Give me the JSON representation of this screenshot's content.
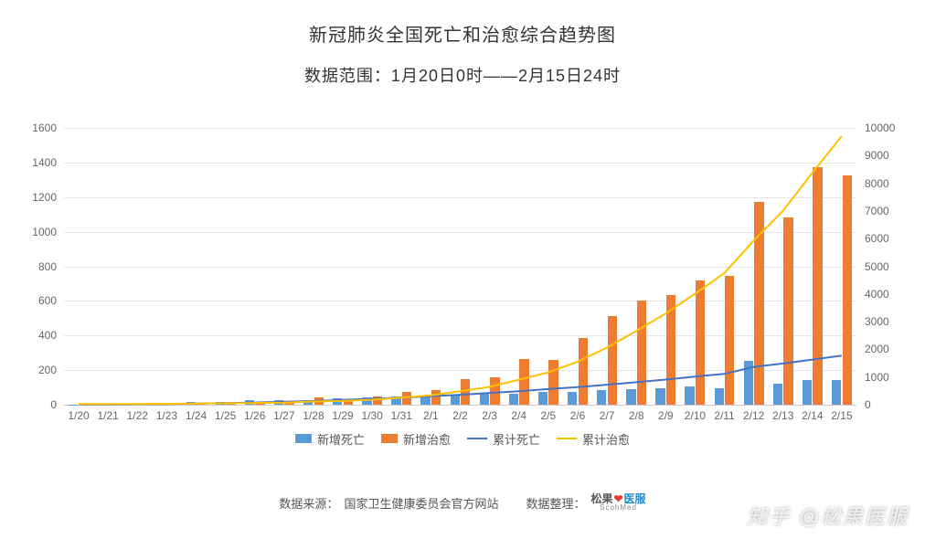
{
  "title": "新冠肺炎全国死亡和治愈综合趋势图",
  "subtitle": "数据范围：1月20日0时——2月15日24时",
  "colors": {
    "bar_deaths": "#5b9bd5",
    "bar_cured": "#ed7d31",
    "line_deaths": "#4472c4",
    "line_cured": "#ffc000",
    "grid": "#e6e6e6",
    "axis_text": "#666666",
    "background": "#ffffff"
  },
  "font": {
    "title_size": 20,
    "subtitle_size": 18,
    "tick_size": 12,
    "legend_size": 13
  },
  "chart": {
    "type": "combo-bar-line-dual-axis",
    "categories": [
      "1/20",
      "1/21",
      "1/22",
      "1/23",
      "1/24",
      "1/25",
      "1/26",
      "1/27",
      "1/28",
      "1/29",
      "1/30",
      "1/31",
      "2/1",
      "2/2",
      "2/3",
      "2/4",
      "2/5",
      "2/6",
      "2/7",
      "2/8",
      "2/9",
      "2/10",
      "2/11",
      "2/12",
      "2/13",
      "2/14",
      "2/15"
    ],
    "left_axis": {
      "min": 0,
      "max": 1600,
      "step": 200,
      "applies_to": [
        "new_deaths",
        "new_cured"
      ]
    },
    "right_axis": {
      "min": 0,
      "max": 10000,
      "step": 1000,
      "applies_to": [
        "cum_deaths",
        "cum_cured"
      ]
    },
    "series": {
      "new_deaths": {
        "label": "新增死亡",
        "type": "bar",
        "color": "#5b9bd5",
        "data": [
          2,
          3,
          8,
          8,
          16,
          15,
          24,
          26,
          26,
          38,
          43,
          46,
          45,
          57,
          64,
          65,
          73,
          73,
          86,
          89,
          97,
          108,
          97,
          254,
          121,
          143,
          142
        ]
      },
      "new_cured": {
        "label": "新增治愈",
        "type": "bar",
        "color": "#ed7d31",
        "data": [
          0,
          0,
          0,
          6,
          8,
          11,
          9,
          9,
          43,
          21,
          47,
          72,
          85,
          147,
          157,
          262,
          261,
          387,
          510,
          600,
          632,
          716,
          744,
          1171,
          1081,
          1373,
          1323
        ]
      },
      "cum_deaths": {
        "label": "累计死亡",
        "type": "line",
        "color": "#4472c4",
        "data": [
          6,
          9,
          17,
          25,
          41,
          56,
          80,
          106,
          132,
          170,
          213,
          259,
          304,
          361,
          425,
          490,
          563,
          636,
          722,
          811,
          908,
          1016,
          1113,
          1367,
          1488,
          1631,
          1773
        ]
      },
      "cum_cured": {
        "label": "累计治愈",
        "type": "line",
        "color": "#ffc000",
        "data": [
          28,
          28,
          28,
          34,
          42,
          53,
          62,
          71,
          114,
          135,
          182,
          254,
          339,
          486,
          643,
          905,
          1166,
          1553,
          2063,
          2663,
          3295,
          4011,
          4755,
          5926,
          7007,
          8380,
          9703
        ]
      }
    },
    "bar_width_ratio": 0.32,
    "bar_gap_ratio": 0.04
  },
  "legend_order": [
    "new_deaths",
    "new_cured",
    "cum_deaths",
    "cum_cured"
  ],
  "footer": {
    "source_label": "数据来源：",
    "source_value": "国家卫生健康委员会官方网站",
    "curator_label": "数据整理：",
    "curator_logo": {
      "main": "松果",
      "accent": "医服",
      "accent_color": "#1e88c7",
      "sub": "ScohMed",
      "icon_color": "#e53935"
    }
  },
  "watermark": "知乎 @松果医服"
}
